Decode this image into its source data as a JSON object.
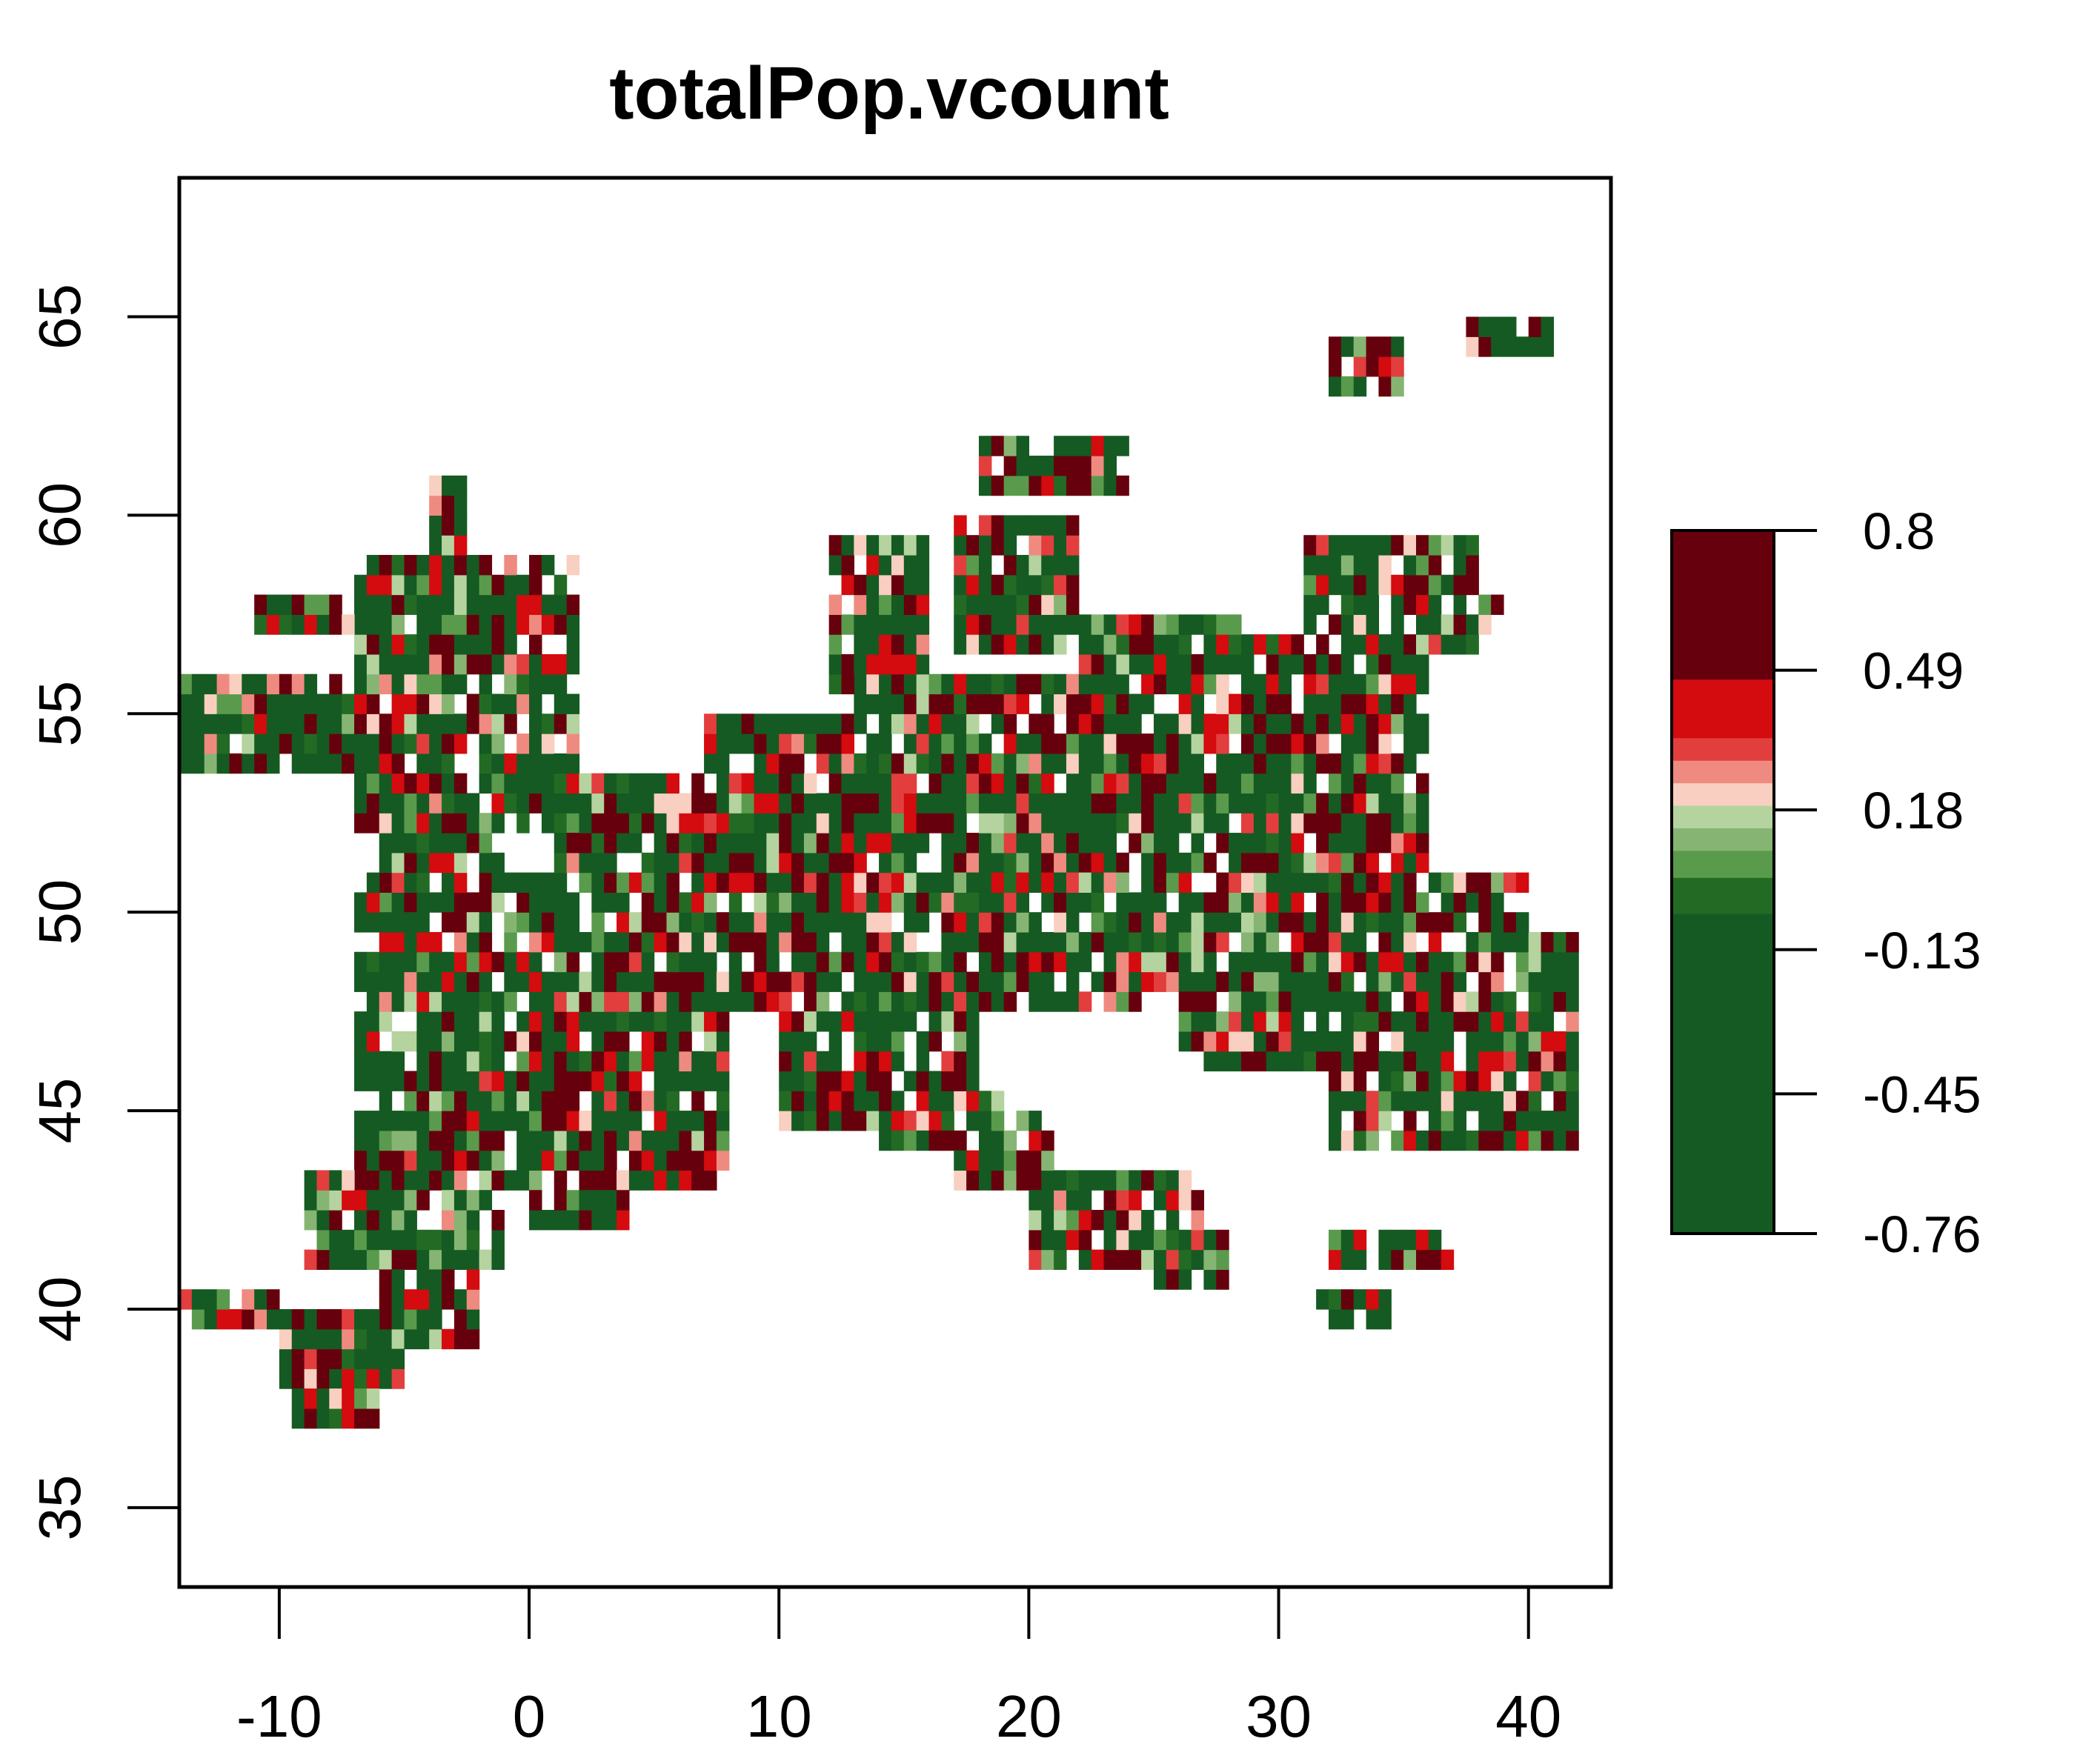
{
  "chart_data": {
    "type": "heatmap",
    "title": "totalPop.vcount",
    "xlabel": "",
    "ylabel": "",
    "xlim": [
      -14,
      43.3
    ],
    "ylim": [
      33,
      68.5
    ],
    "x_ticks": [
      -10,
      0,
      10,
      20,
      30,
      40
    ],
    "y_ticks": [
      35,
      40,
      45,
      50,
      55,
      60,
      65
    ],
    "x_tick_labels": [
      "-10",
      "0",
      "10",
      "20",
      "30",
      "40"
    ],
    "y_tick_labels": [
      "35",
      "40",
      "45",
      "50",
      "55",
      "60",
      "65"
    ],
    "cell_size_deg": 0.5,
    "grid": false,
    "legend": {
      "placement": "right",
      "ticks": [
        -0.76,
        -0.45,
        -0.13,
        0.18,
        0.49,
        0.8
      ],
      "tick_labels": [
        "-0.76",
        "-0.45",
        "-0.13",
        "0.18",
        "0.49",
        "0.8"
      ],
      "range": [
        -0.76,
        0.8
      ],
      "bins": [
        {
          "from": -0.76,
          "to": -0.05,
          "color": "#155a22"
        },
        {
          "from": -0.05,
          "to": 0.03,
          "color": "#236b24"
        },
        {
          "from": 0.03,
          "to": 0.09,
          "color": "#5a9a4c"
        },
        {
          "from": 0.09,
          "to": 0.14,
          "color": "#86b573"
        },
        {
          "from": 0.14,
          "to": 0.19,
          "color": "#b5d39e"
        },
        {
          "from": 0.19,
          "to": 0.24,
          "color": "#f8cfc0"
        },
        {
          "from": 0.24,
          "to": 0.29,
          "color": "#ef8a80"
        },
        {
          "from": 0.29,
          "to": 0.34,
          "color": "#e23e3e"
        },
        {
          "from": 0.34,
          "to": 0.47,
          "color": "#d40b0f"
        },
        {
          "from": 0.47,
          "to": 0.8,
          "color": "#67000d"
        }
      ]
    },
    "regions": [
      {
        "lon": [
          -14,
          -7
        ],
        "lat": [
          53.5,
          56
        ]
      },
      {
        "lon": [
          -6,
          -1
        ],
        "lat": [
          50,
          52
        ]
      },
      {
        "lon": [
          -7,
          2
        ],
        "lat": [
          52,
          59
        ]
      },
      {
        "lon": [
          -4,
          -2.5
        ],
        "lat": [
          58.5,
          60.8
        ]
      },
      {
        "lon": [
          -11,
          -7
        ],
        "lat": [
          57,
          58
        ]
      },
      {
        "lon": [
          -7,
          8
        ],
        "lat": [
          43,
          51
        ]
      },
      {
        "lon": [
          -1,
          3
        ],
        "lat": [
          49,
          51
        ]
      },
      {
        "lon": [
          1,
          8
        ],
        "lat": [
          49.5,
          53.5
        ]
      },
      {
        "lon": [
          7,
          16
        ],
        "lat": [
          47.5,
          55
        ]
      },
      {
        "lon": [
          13,
          24
        ],
        "lat": [
          51,
          56
        ]
      },
      {
        "lon": [
          16,
          25
        ],
        "lat": [
          47.5,
          51
        ]
      },
      {
        "lon": [
          24,
          36
        ],
        "lat": [
          48,
          57
        ]
      },
      {
        "lon": [
          26,
          32
        ],
        "lat": [
          46,
          48.5
        ]
      },
      {
        "lon": [
          32,
          42
        ],
        "lat": [
          44,
          49.5
        ]
      },
      {
        "lon": [
          36,
          40
        ],
        "lat": [
          49,
          51
        ]
      },
      {
        "lon": [
          22,
          29
        ],
        "lat": [
          54,
          57.5
        ]
      },
      {
        "lon": [
          12,
          16
        ],
        "lat": [
          55.5,
          59.5
        ]
      },
      {
        "lon": [
          17,
          22
        ],
        "lat": [
          56.5,
          60
        ]
      },
      {
        "lon": [
          18,
          24
        ],
        "lat": [
          60.5,
          62
        ]
      },
      {
        "lon": [
          31,
          38
        ],
        "lat": [
          56.5,
          59.5
        ]
      },
      {
        "lon": [
          10,
          18
        ],
        "lat": [
          44.5,
          47.5
        ]
      },
      {
        "lon": [
          14,
          19
        ],
        "lat": [
          44,
          45.5
        ]
      },
      {
        "lon": [
          17,
          21
        ],
        "lat": [
          43,
          45
        ]
      },
      {
        "lon": [
          20,
          27
        ],
        "lat": [
          41,
          43.5
        ]
      },
      {
        "lon": [
          25,
          28
        ],
        "lat": [
          40.5,
          42
        ]
      },
      {
        "lon": [
          -9,
          -1
        ],
        "lat": [
          41,
          43.5
        ]
      },
      {
        "lon": [
          -6,
          -2
        ],
        "lat": [
          39,
          41
        ]
      },
      {
        "lon": [
          -10,
          -5
        ],
        "lat": [
          38,
          40
        ]
      },
      {
        "lon": [
          -14,
          -10
        ],
        "lat": [
          39.5,
          40.3
        ]
      },
      {
        "lon": [
          -9.5,
          -6
        ],
        "lat": [
          37,
          38.5
        ]
      },
      {
        "lon": [
          0,
          4
        ],
        "lat": [
          42,
          43
        ]
      },
      {
        "lon": [
          32,
          37
        ],
        "lat": [
          41,
          42
        ]
      },
      {
        "lon": [
          31.5,
          34.5
        ],
        "lat": [
          39.5,
          40.5
        ]
      },
      {
        "lon": [
          32,
          35
        ],
        "lat": [
          63,
          64.5
        ]
      },
      {
        "lon": [
          37.5,
          41
        ],
        "lat": [
          64,
          65
        ]
      },
      {
        "lon": [
          37.5,
          39
        ],
        "lat": [
          56.8,
          58
        ]
      }
    ]
  }
}
